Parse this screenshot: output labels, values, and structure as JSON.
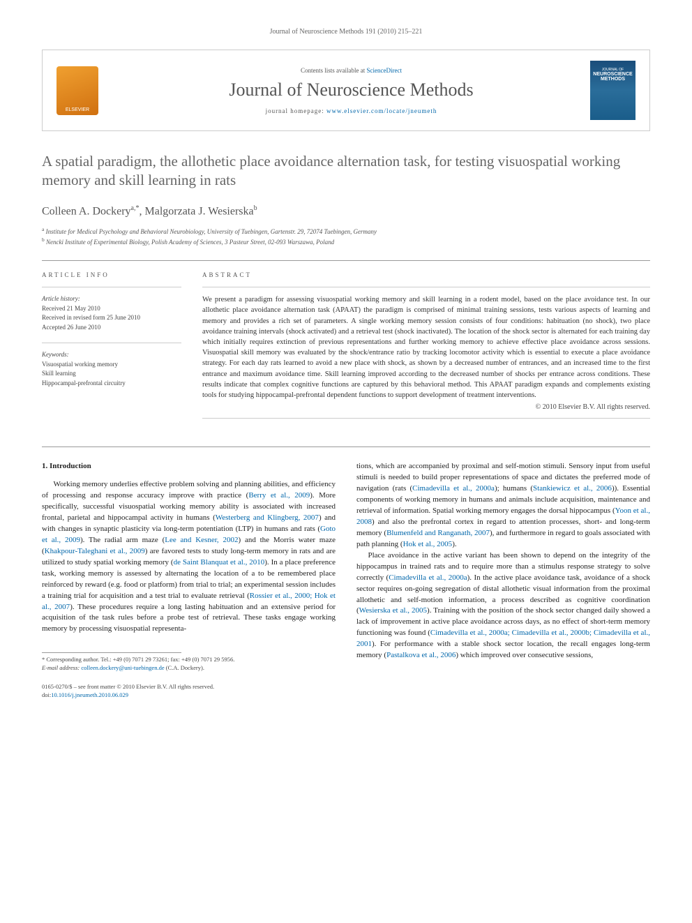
{
  "header": {
    "citation": "Journal of Neuroscience Methods 191 (2010) 215–221"
  },
  "journalBox": {
    "elsevier": "ELSEVIER",
    "contentsPrefix": "Contents lists available at ",
    "contentsLink": "ScienceDirect",
    "journalName": "Journal of Neuroscience Methods",
    "homepagePrefix": "journal homepage: ",
    "homepageLink": "www.elsevier.com/locate/jneumeth",
    "cover": {
      "line1": "JOURNAL OF",
      "line2": "NEUROSCIENCE",
      "line3": "METHODS"
    }
  },
  "title": "A spatial paradigm, the allothetic place avoidance alternation task, for testing visuospatial working memory and skill learning in rats",
  "authors": {
    "a1name": "Colleen A. Dockery",
    "a1sup": "a,*",
    "sep": ", ",
    "a2name": "Malgorzata J. Wesierska",
    "a2sup": "b"
  },
  "affiliations": {
    "a": "Institute for Medical Psychology and Behavioral Neurobiology, University of Tuebingen, Gartenstr. 29, 72074 Tuebingen, Germany",
    "b": "Nencki Institute of Experimental Biology, Polish Academy of Sciences, 3 Pasteur Street, 02-093 Warszawa, Poland"
  },
  "articleInfo": {
    "heading": "ARTICLE INFO",
    "historyLabel": "Article history:",
    "received": "Received 21 May 2010",
    "revised": "Received in revised form 25 June 2010",
    "accepted": "Accepted 26 June 2010",
    "keywordsLabel": "Keywords:",
    "kw1": "Visuospatial working memory",
    "kw2": "Skill learning",
    "kw3": "Hippocampal-prefrontal circuitry"
  },
  "abstract": {
    "heading": "ABSTRACT",
    "text": "We present a paradigm for assessing visuospatial working memory and skill learning in a rodent model, based on the place avoidance test. In our allothetic place avoidance alternation task (APAAT) the paradigm is comprised of minimal training sessions, tests various aspects of learning and memory and provides a rich set of parameters. A single working memory session consists of four conditions: habituation (no shock), two place avoidance training intervals (shock activated) and a retrieval test (shock inactivated). The location of the shock sector is alternated for each training day which initially requires extinction of previous representations and further working memory to achieve effective place avoidance across sessions. Visuospatial skill memory was evaluated by the shock/entrance ratio by tracking locomotor activity which is essential to execute a place avoidance strategy. For each day rats learned to avoid a new place with shock, as shown by a decreased number of entrances, and an increased time to the first entrance and maximum avoidance time. Skill learning improved according to the decreased number of shocks per entrance across conditions. These results indicate that complex cognitive functions are captured by this behavioral method. This APAAT paradigm expands and complements existing tools for studying hippocampal-prefrontal dependent functions to support development of treatment interventions.",
    "copyright": "© 2010 Elsevier B.V. All rights reserved."
  },
  "body": {
    "sectionHeading": "1. Introduction",
    "col1": {
      "p1a": "Working memory underlies effective problem solving and planning abilities, and efficiency of processing and response accuracy improve with practice (",
      "p1link1": "Berry et al., 2009",
      "p1b": "). More specifically, successful visuospatial working memory ability is associated with increased frontal, parietal and hippocampal activity in humans (",
      "p1link2": "Westerberg and Klingberg, 2007",
      "p1c": ") and with changes in synaptic plasticity via long-term potentiation (LTP) in humans and rats (",
      "p1link3": "Goto et al., 2009",
      "p1d": "). The radial arm maze (",
      "p1link4": "Lee and Kesner, 2002",
      "p1e": ") and the Morris water maze (",
      "p1link5": "Khakpour-Taleghani et al., 2009",
      "p1f": ") are favored tests to study long-term memory in rats and are utilized to study spatial working memory (",
      "p1link6": "de Saint Blanquat et al., 2010",
      "p1g": "). In a place preference task, working memory is assessed by alternating the location of a to be remembered place reinforced by reward (e.g. food or platform) from trial to trial; an experimental session includes a training trial for acquisition and a test trial to evaluate retrieval (",
      "p1link7": "Rossier et al., 2000; Hok et al., 2007",
      "p1h": "). These procedures require a long lasting habituation and an extensive period for acquisition of the task rules before a probe test of retrieval. These tasks engage working memory by processing visuospatial representa-"
    },
    "col2": {
      "p1a": "tions, which are accompanied by proximal and self-motion stimuli. Sensory input from useful stimuli is needed to build proper representations of space and dictates the preferred mode of navigation (rats (",
      "p1link1": "Cimadevilla et al., 2000a",
      "p1b": "); humans (",
      "p1link2": "Stankiewicz et al., 2006",
      "p1c": ")). Essential components of working memory in humans and animals include acquisition, maintenance and retrieval of information. Spatial working memory engages the dorsal hippocampus (",
      "p1link3": "Yoon et al., 2008",
      "p1d": ") and also the prefrontal cortex in regard to attention processes, short- and long-term memory (",
      "p1link4": "Blumenfeld and Ranganath, 2007",
      "p1e": "), and furthermore in regard to goals associated with path planning (",
      "p1link5": "Hok et al., 2005",
      "p1f": ").",
      "p2a": "Place avoidance in the active variant has been shown to depend on the integrity of the hippocampus in trained rats and to require more than a stimulus response strategy to solve correctly (",
      "p2link1": "Cimadevilla et al., 2000a",
      "p2b": "). In the active place avoidance task, avoidance of a shock sector requires on-going segregation of distal allothetic visual information from the proximal allothetic and self-motion information, a process described as cognitive coordination (",
      "p2link2": "Wesierska et al., 2005",
      "p2c": "). Training with the position of the shock sector changed daily showed a lack of improvement in active place avoidance across days, as no effect of short-term memory functioning was found (",
      "p2link3": "Cimadevilla et al., 2000a; Cimadevilla et al., 2000b; Cimadevilla et al., 2001",
      "p2d": "). For performance with a stable shock sector location, the recall engages long-term memory (",
      "p2link4": "Pastalkova et al., 2006",
      "p2e": ") which improved over consecutive sessions,"
    }
  },
  "footnote": {
    "corrLabel": "* Corresponding author. Tel.: +49 (0) 7071 29 73261; fax: +49 (0) 7071 29 5956.",
    "emailLabel": "E-mail address: ",
    "email": "colleen.dockery@uni-tuebingen.de",
    "emailSuffix": " (C.A. Dockery)."
  },
  "bottom": {
    "line1": "0165-0270/$ – see front matter © 2010 Elsevier B.V. All rights reserved.",
    "doiPrefix": "doi:",
    "doi": "10.1016/j.jneumeth.2010.06.029"
  }
}
